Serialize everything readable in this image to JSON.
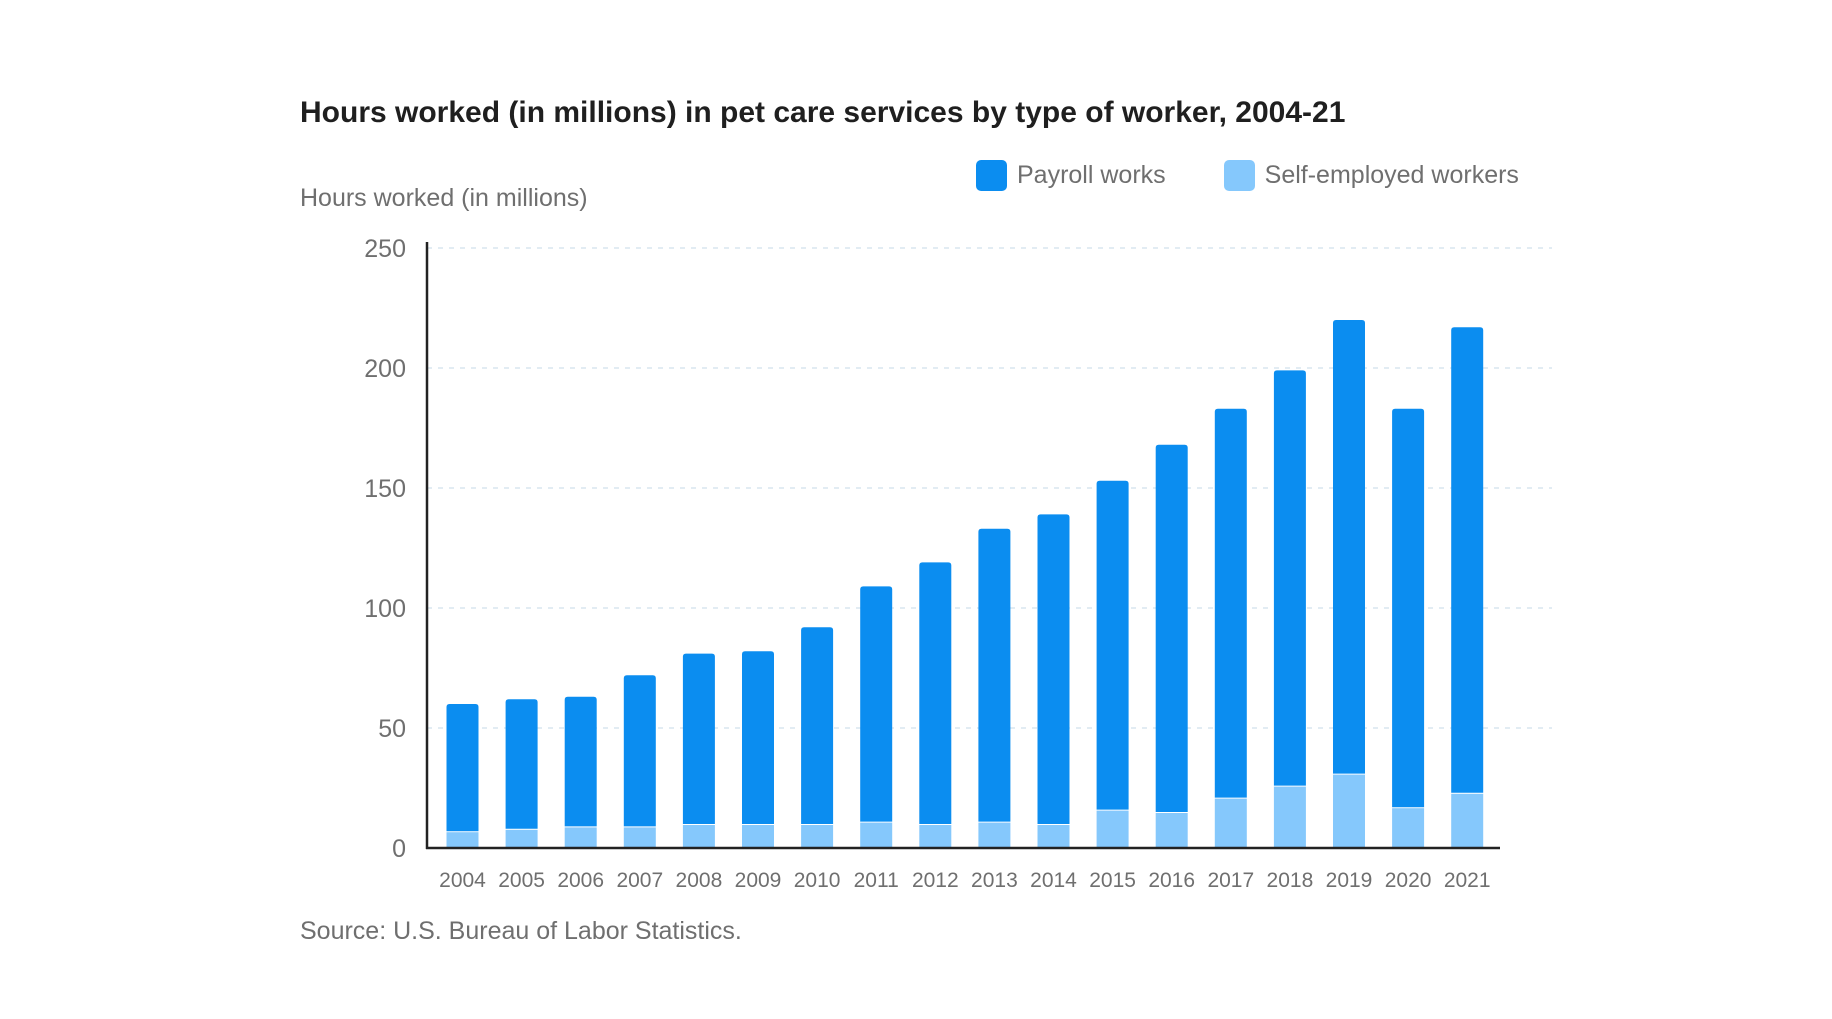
{
  "chart_data": {
    "type": "bar",
    "stacked": true,
    "title": "Hours worked (in millions) in pet care services by type of worker, 2004-21",
    "ylabel": "Hours worked (in millions)",
    "xlabel": "",
    "source": "Source: U.S. Bureau of Labor Statistics.",
    "ylim": [
      0,
      250
    ],
    "yticks": [
      "0",
      "50",
      "100",
      "150",
      "200",
      "250"
    ],
    "grid": "horizontal dotted",
    "legend_position": "top-right",
    "categories": [
      "2004",
      "2005",
      "2006",
      "2007",
      "2008",
      "2009",
      "2010",
      "2011",
      "2012",
      "2013",
      "2014",
      "2015",
      "2016",
      "2017",
      "2018",
      "2019",
      "2020",
      "2021"
    ],
    "series": [
      {
        "name": "Self-employed workers",
        "color": "#85c8fc",
        "values": [
          7,
          8,
          9,
          9,
          10,
          10,
          10,
          11,
          10,
          11,
          10,
          16,
          15,
          21,
          26,
          31,
          17,
          23
        ]
      },
      {
        "name": "Payroll works",
        "color": "#0b8df0",
        "values": [
          53,
          54,
          54,
          63,
          71,
          72,
          82,
          98,
          109,
          122,
          129,
          137,
          153,
          162,
          173,
          189,
          166,
          194
        ]
      }
    ],
    "legend_order": [
      "Payroll works",
      "Self-employed workers"
    ]
  }
}
